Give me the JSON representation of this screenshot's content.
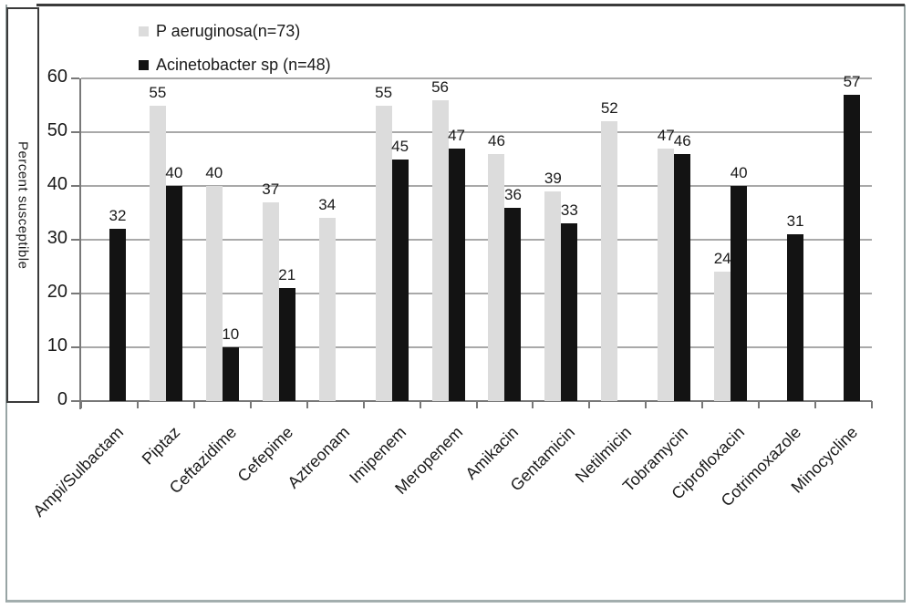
{
  "chart_data": {
    "type": "bar",
    "ylabel": "Percent susceptible",
    "xlabel": "",
    "ylim": [
      0,
      60
    ],
    "yticks": [
      0,
      10,
      20,
      30,
      40,
      50,
      60
    ],
    "grid": true,
    "legend_position": "top-left",
    "bar_value_labels": true,
    "categories": [
      "Ampi/Sulbactam",
      "Piptaz",
      "Ceftazidime",
      "Cefepime",
      "Aztreonam",
      "Imipenem",
      "Meropenem",
      "Amikacin",
      "Gentamicin",
      "Netilmicin",
      "Tobramycin",
      "Ciprofloxacin",
      "Cotrimoxazole",
      "Minocycline"
    ],
    "series": [
      {
        "name": "P aeruginosa(n=73)",
        "color": "#dcdcdc",
        "values": [
          null,
          55,
          40,
          37,
          34,
          55,
          56,
          46,
          39,
          52,
          47,
          24,
          null,
          null
        ]
      },
      {
        "name": "Acinetobacter sp (n=48)",
        "color": "#131313",
        "values": [
          32,
          40,
          10,
          21,
          null,
          45,
          47,
          36,
          33,
          null,
          46,
          40,
          31,
          57
        ]
      }
    ],
    "colors": {
      "gridline": "#a9a9a9",
      "axis": "#787878",
      "text": "#1a1a1a"
    }
  }
}
